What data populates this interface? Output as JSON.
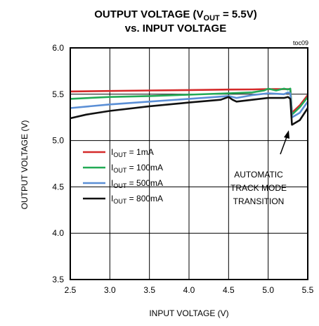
{
  "chart_data": {
    "type": "line",
    "title_main": "OUTPUT VOLTAGE (V",
    "title_sub": "OUT",
    "title_rest": " = 5.5V)",
    "title_line2": "vs. INPUT VOLTAGE",
    "figure_id": "toc09",
    "xlabel": "INPUT VOLTAGE (V)",
    "ylabel": "OUTPUT VOLTAGE (V)",
    "xlim": [
      2.5,
      5.5
    ],
    "ylim": [
      3.5,
      6.0
    ],
    "x_ticks": [
      "2.5",
      "3.0",
      "3.5",
      "4.0",
      "4.5",
      "5.0",
      "5.5"
    ],
    "y_ticks": [
      "3.5",
      "4.0",
      "4.5",
      "5.0",
      "5.5",
      "6.0"
    ],
    "grid": true,
    "legend_position": "center-left",
    "annotation": [
      "AUTOMATIC",
      "TRACK MODE",
      "TRANSITION"
    ],
    "series": [
      {
        "name": "I_OUT = 1mA",
        "label_prefix": "I",
        "label_sub": "OUT",
        "label_suffix": " = 1mA",
        "color": "#d42a2a",
        "x": [
          2.5,
          3.0,
          3.5,
          4.0,
          4.5,
          4.8,
          5.0,
          5.2,
          5.25,
          5.28,
          5.3,
          5.4,
          5.5
        ],
        "y": [
          5.53,
          5.535,
          5.54,
          5.545,
          5.55,
          5.552,
          5.555,
          5.555,
          5.555,
          5.555,
          5.3,
          5.38,
          5.49
        ]
      },
      {
        "name": "I_OUT = 100mA",
        "label_prefix": "I",
        "label_sub": "OUT",
        "label_suffix": " = 100mA",
        "color": "#22aa55",
        "x": [
          2.5,
          3.0,
          3.5,
          4.0,
          4.5,
          4.8,
          4.95,
          5.0,
          5.1,
          5.2,
          5.25,
          5.28,
          5.3,
          5.4,
          5.5
        ],
        "y": [
          5.45,
          5.47,
          5.48,
          5.495,
          5.51,
          5.52,
          5.54,
          5.56,
          5.54,
          5.56,
          5.55,
          5.56,
          5.28,
          5.36,
          5.47
        ]
      },
      {
        "name": "I_OUT = 500mA",
        "label_prefix": "I",
        "label_sub": "OUT",
        "label_suffix": " = 500mA",
        "color": "#5b8fd6",
        "x": [
          2.5,
          3.0,
          3.5,
          4.0,
          4.5,
          4.6,
          4.8,
          5.0,
          5.2,
          5.25,
          5.28,
          5.3,
          5.4,
          5.5
        ],
        "y": [
          5.35,
          5.39,
          5.42,
          5.45,
          5.48,
          5.46,
          5.49,
          5.51,
          5.5,
          5.52,
          5.51,
          5.25,
          5.3,
          5.42
        ]
      },
      {
        "name": "I_OUT = 800mA",
        "label_prefix": "I",
        "label_sub": "OUT",
        "label_suffix": " = 800mA",
        "color": "#111111",
        "x": [
          2.5,
          2.7,
          3.0,
          3.5,
          4.0,
          4.4,
          4.5,
          4.55,
          4.6,
          4.8,
          5.0,
          5.2,
          5.25,
          5.28,
          5.3,
          5.4,
          5.5
        ],
        "y": [
          5.24,
          5.28,
          5.32,
          5.37,
          5.41,
          5.44,
          5.47,
          5.44,
          5.42,
          5.44,
          5.46,
          5.46,
          5.47,
          5.45,
          5.17,
          5.22,
          5.35
        ]
      }
    ]
  }
}
